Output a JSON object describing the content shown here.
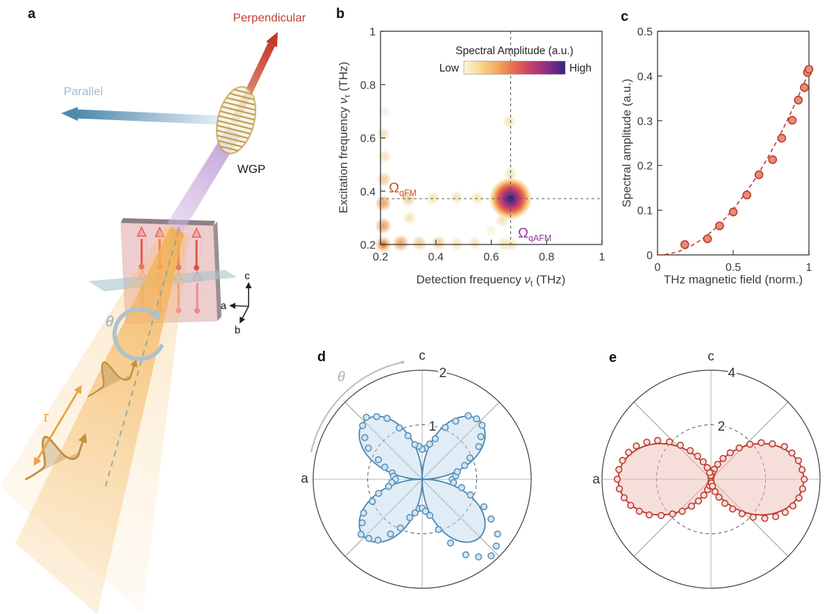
{
  "figure": {
    "bg": "#ffffff",
    "panels": {
      "a": "a",
      "b": "b",
      "c": "c",
      "d": "d",
      "e": "e"
    }
  },
  "panel_a": {
    "perpendicular_label": "Perpendicular",
    "parallel_label": "Parallel",
    "wgp_label": "WGP",
    "theta_label": "θ",
    "tau_label": "τ",
    "crystal_axes": {
      "a": "a",
      "b": "b",
      "c": "c"
    },
    "colors": {
      "perpendicular": "#c2443a",
      "parallel": "#9cbcd4",
      "beam_orange": "#f2b254",
      "beam_purple": "#b893cd",
      "sample_pink": "#edc9cc",
      "spin_red": "#e25449",
      "plane_teal": "#a9c4cc",
      "theta_gray": "#95afbf",
      "tau_orange": "#eba53f"
    }
  },
  "chart_data": [
    {
      "id": "b",
      "type": "heatmap",
      "xlabel": "Detection frequency νt (THz)",
      "ylabel": "Excitation frequency ντ (THz)",
      "xlabel_parts": {
        "pre": "Detection frequency ",
        "sym": "ν",
        "sub": "t",
        "post": " (THz)"
      },
      "ylabel_parts": {
        "pre": "Excitation frequency ",
        "sym": "ν",
        "sub": "τ",
        "post": " (THz)"
      },
      "xlim": [
        0.2,
        1
      ],
      "ylim": [
        0.2,
        1
      ],
      "xticks": [
        0.2,
        0.4,
        0.6,
        0.8,
        1
      ],
      "xtick_labels": [
        "0.2",
        "0.4",
        "0.6",
        "0.8",
        "1"
      ],
      "yticks": [
        0.2,
        0.4,
        0.6,
        0.8,
        1
      ],
      "ytick_labels": [
        "0.2",
        "0.4",
        "0.6",
        "0.8",
        "1"
      ],
      "grid": false,
      "colorbar": {
        "title": "Spectral Amplitude (a.u.)",
        "low_label": "Low",
        "high_label": "High",
        "colors": [
          "#fdf6dc",
          "#f8d789",
          "#f4a95c",
          "#e86a50",
          "#c23f6e",
          "#8a2d85",
          "#35257e"
        ]
      },
      "dashed_guides": {
        "x": 0.67,
        "y": 0.372
      },
      "annotations": [
        {
          "sym": "Ω",
          "sub": "qFM",
          "x": 0.235,
          "y": 0.435,
          "color": "#cf4f28"
        },
        {
          "sym": "Ω",
          "sub": "qAFM",
          "x": 0.705,
          "y": 0.255,
          "color": "#8d3b94"
        }
      ],
      "main_peak": {
        "x": 0.67,
        "y": 0.372,
        "gradient": [
          "#302374",
          "#5b2b8a",
          "#8a2d85",
          "#c23f6e",
          "#e9654c",
          "#f4a95c",
          "#f7dfa8"
        ]
      },
      "spot_levels": {
        "vfaint": {
          "color": "#f1e2b0",
          "r": 9,
          "op": 0.5
        },
        "faint": {
          "color": "#efd99c",
          "r": 10,
          "op": 0.75
        },
        "weak": {
          "color": "#f0c180",
          "r": 11,
          "op": 0.85
        },
        "medium": {
          "color": "#ec9a55",
          "r": 12,
          "op": 0.95
        },
        "strong": {
          "color": "#d9544e",
          "r": 13,
          "op": 1
        }
      },
      "spots": [
        {
          "x": 0.21,
          "y": 0.2,
          "level": "strong"
        },
        {
          "x": 0.21,
          "y": 0.27,
          "level": "medium"
        },
        {
          "x": 0.21,
          "y": 0.355,
          "level": "medium"
        },
        {
          "x": 0.212,
          "y": 0.445,
          "level": "weak"
        },
        {
          "x": 0.215,
          "y": 0.53,
          "level": "faint"
        },
        {
          "x": 0.21,
          "y": 0.615,
          "level": "faint"
        },
        {
          "x": 0.215,
          "y": 0.7,
          "level": "vfaint"
        },
        {
          "x": 0.273,
          "y": 0.205,
          "level": "medium"
        },
        {
          "x": 0.34,
          "y": 0.205,
          "level": "weak"
        },
        {
          "x": 0.41,
          "y": 0.205,
          "level": "weak"
        },
        {
          "x": 0.476,
          "y": 0.202,
          "level": "faint"
        },
        {
          "x": 0.54,
          "y": 0.205,
          "level": "faint"
        },
        {
          "x": 0.645,
          "y": 0.202,
          "level": "faint"
        },
        {
          "x": 0.672,
          "y": 0.2,
          "level": "faint"
        },
        {
          "x": 0.3,
          "y": 0.372,
          "level": "weak"
        },
        {
          "x": 0.39,
          "y": 0.374,
          "level": "faint"
        },
        {
          "x": 0.475,
          "y": 0.376,
          "level": "faint"
        },
        {
          "x": 0.55,
          "y": 0.375,
          "level": "faint"
        },
        {
          "x": 0.61,
          "y": 0.373,
          "level": "vfaint"
        },
        {
          "x": 0.305,
          "y": 0.3,
          "level": "faint"
        },
        {
          "x": 0.64,
          "y": 0.29,
          "level": "faint"
        },
        {
          "x": 0.6,
          "y": 0.252,
          "level": "vfaint"
        },
        {
          "x": 0.67,
          "y": 0.465,
          "level": "faint"
        },
        {
          "x": 0.665,
          "y": 0.66,
          "level": "faint"
        }
      ]
    },
    {
      "id": "c",
      "type": "scatter",
      "xlabel": "THz magnetic field (norm.)",
      "ylabel": "Spectral amplitude (a.u.)",
      "xlim": [
        0,
        1
      ],
      "ylim": [
        0,
        0.5
      ],
      "xticks": [
        0,
        0.5,
        1
      ],
      "xtick_labels": [
        "0",
        "0.5",
        "1"
      ],
      "yticks": [
        0,
        0.1,
        0.2,
        0.3,
        0.4,
        0.5
      ],
      "ytick_labels": [
        "0",
        "0.1",
        "0.2",
        "0.3",
        "0.4",
        "0.5"
      ],
      "grid": false,
      "x": [
        0.18,
        0.33,
        0.41,
        0.5,
        0.59,
        0.67,
        0.76,
        0.82,
        0.89,
        0.93,
        0.97,
        0.99,
        1.0
      ],
      "y": [
        0.023,
        0.036,
        0.065,
        0.096,
        0.134,
        0.179,
        0.213,
        0.261,
        0.301,
        0.346,
        0.374,
        0.408,
        0.415
      ],
      "fit": {
        "type": "power",
        "coeff": 0.41,
        "exponent": 2,
        "style": "dashed",
        "color": "#c0392b"
      },
      "marker": {
        "fill": "#ea8b76",
        "edge": "#b9392e"
      }
    },
    {
      "id": "d",
      "type": "polar",
      "axis_top_label": "c",
      "axis_side_label": "a",
      "theta_label": "θ",
      "rmax": 2,
      "rticks": [
        1,
        2
      ],
      "rtick_labels": [
        "1",
        "2"
      ],
      "fit": {
        "formula": "abs_sin_2theta",
        "amplitude": 1.5
      },
      "curve_color": "#4d88b5",
      "fill_color": "rgba(189,216,235,0.45)",
      "marker": {
        "fill": "#d4e5f2",
        "edge": "#5d95bd"
      },
      "points": [
        [
          0,
          0.55
        ],
        [
          6,
          0.62
        ],
        [
          12,
          0.66
        ],
        [
          18,
          0.82
        ],
        [
          24,
          0.96
        ],
        [
          30,
          1.2
        ],
        [
          36,
          1.33
        ],
        [
          42,
          1.48
        ],
        [
          48,
          1.49
        ],
        [
          54,
          1.44
        ],
        [
          60,
          1.23
        ],
        [
          66,
          1.04
        ],
        [
          72,
          0.78
        ],
        [
          78,
          0.66
        ],
        [
          84,
          0.57
        ],
        [
          90,
          0.55
        ],
        [
          96,
          0.61
        ],
        [
          102,
          0.65
        ],
        [
          108,
          0.84
        ],
        [
          114,
          1.03
        ],
        [
          120,
          1.29
        ],
        [
          126,
          1.42
        ],
        [
          132,
          1.53
        ],
        [
          138,
          1.47
        ],
        [
          144,
          1.3
        ],
        [
          150,
          1.14
        ],
        [
          156,
          0.88
        ],
        [
          162,
          0.72
        ],
        [
          168,
          0.56
        ],
        [
          174,
          0.53
        ],
        [
          180,
          0.49
        ],
        [
          186,
          0.56
        ],
        [
          192,
          0.63
        ],
        [
          198,
          0.84
        ],
        [
          204,
          1.0
        ],
        [
          210,
          1.24
        ],
        [
          216,
          1.36
        ],
        [
          222,
          1.51
        ],
        [
          228,
          1.46
        ],
        [
          234,
          1.38
        ],
        [
          240,
          1.16
        ],
        [
          246,
          0.98
        ],
        [
          252,
          0.74
        ],
        [
          258,
          0.63
        ],
        [
          264,
          0.54
        ],
        [
          270,
          0.53
        ],
        [
          276,
          0.59
        ],
        [
          282,
          0.68
        ],
        [
          288,
          0.97
        ],
        [
          294,
          1.28
        ],
        [
          300,
          1.6
        ],
        [
          306,
          1.76
        ],
        [
          312,
          1.89
        ],
        [
          318,
          1.83
        ],
        [
          324,
          1.71
        ],
        [
          330,
          1.46
        ],
        [
          336,
          1.24
        ],
        [
          342,
          0.93
        ],
        [
          348,
          0.74
        ],
        [
          354,
          0.58
        ]
      ]
    },
    {
      "id": "e",
      "type": "polar",
      "axis_top_label": "c",
      "axis_side_label": "a",
      "rmax": 4,
      "rticks": [
        2,
        4
      ],
      "rtick_labels": [
        "2",
        "4"
      ],
      "fit": {
        "formula": "cos_squared",
        "amplitude": 3.4
      },
      "curve_color": "#b5372c",
      "fill_color": "rgba(238,189,182,0.5)",
      "marker": {
        "fill": "#f8e2dc",
        "edge": "#c04237"
      },
      "points": [
        [
          0,
          3.42
        ],
        [
          6,
          3.36
        ],
        [
          12,
          3.28
        ],
        [
          18,
          3.12
        ],
        [
          24,
          2.95
        ],
        [
          30,
          2.6
        ],
        [
          36,
          2.28
        ],
        [
          42,
          1.92
        ],
        [
          48,
          1.55
        ],
        [
          54,
          1.2
        ],
        [
          60,
          0.88
        ],
        [
          66,
          0.6
        ],
        [
          72,
          0.38
        ],
        [
          78,
          0.22
        ],
        [
          84,
          0.12
        ],
        [
          90,
          0.08
        ],
        [
          96,
          0.14
        ],
        [
          102,
          0.25
        ],
        [
          108,
          0.45
        ],
        [
          114,
          0.7
        ],
        [
          120,
          0.98
        ],
        [
          126,
          1.3
        ],
        [
          132,
          1.68
        ],
        [
          138,
          2.05
        ],
        [
          144,
          2.42
        ],
        [
          150,
          2.72
        ],
        [
          156,
          3.0
        ],
        [
          162,
          3.18
        ],
        [
          168,
          3.32
        ],
        [
          174,
          3.4
        ],
        [
          180,
          3.44
        ],
        [
          186,
          3.38
        ],
        [
          192,
          3.26
        ],
        [
          198,
          3.1
        ],
        [
          204,
          2.88
        ],
        [
          210,
          2.62
        ],
        [
          216,
          2.26
        ],
        [
          222,
          1.9
        ],
        [
          228,
          1.58
        ],
        [
          234,
          1.22
        ],
        [
          240,
          0.92
        ],
        [
          246,
          0.64
        ],
        [
          252,
          0.4
        ],
        [
          258,
          0.24
        ],
        [
          264,
          0.12
        ],
        [
          270,
          0.08
        ],
        [
          276,
          0.14
        ],
        [
          282,
          0.26
        ],
        [
          288,
          0.48
        ],
        [
          294,
          0.72
        ],
        [
          300,
          1.02
        ],
        [
          306,
          1.35
        ],
        [
          312,
          1.7
        ],
        [
          318,
          2.08
        ],
        [
          324,
          2.44
        ],
        [
          330,
          2.74
        ],
        [
          336,
          2.98
        ],
        [
          342,
          3.16
        ],
        [
          348,
          3.3
        ],
        [
          354,
          3.38
        ]
      ]
    }
  ]
}
